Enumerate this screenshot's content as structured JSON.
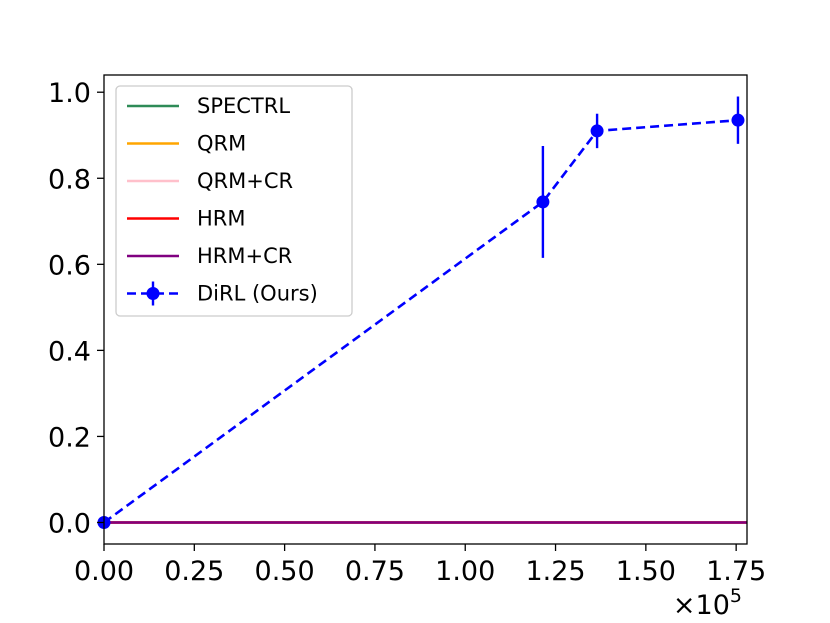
{
  "chart_data": {
    "type": "line",
    "title": "",
    "xlabel": "",
    "ylabel": "",
    "x_offset_text": "×10",
    "x_offset_exponent": "5",
    "xlim": [
      0,
      1.78
    ],
    "ylim": [
      -0.05,
      1.04
    ],
    "x_ticks": [
      0.0,
      0.25,
      0.5,
      0.75,
      1.0,
      1.25,
      1.5,
      1.75
    ],
    "x_tick_labels": [
      "0.00",
      "0.25",
      "0.50",
      "0.75",
      "1.00",
      "1.25",
      "1.50",
      "1.75"
    ],
    "y_ticks": [
      0.0,
      0.2,
      0.4,
      0.6,
      0.8,
      1.0
    ],
    "y_tick_labels": [
      "0.0",
      "0.2",
      "0.4",
      "0.6",
      "0.8",
      "1.0"
    ],
    "grid": false,
    "legend_position": "upper-left",
    "series": [
      {
        "name": "SPECTRL",
        "color": "#2e8b57",
        "style": "solid",
        "x": [
          0,
          1.78
        ],
        "y": [
          0,
          0
        ]
      },
      {
        "name": "QRM",
        "color": "#ffa500",
        "style": "solid",
        "x": [
          0,
          1.78
        ],
        "y": [
          0,
          0
        ]
      },
      {
        "name": "QRM+CR",
        "color": "#ffc0cb",
        "style": "solid",
        "x": [
          0,
          1.78
        ],
        "y": [
          0,
          0
        ]
      },
      {
        "name": "HRM",
        "color": "#ff0000",
        "style": "solid",
        "x": [
          0,
          1.78
        ],
        "y": [
          0,
          0
        ]
      },
      {
        "name": "HRM+CR",
        "color": "#800080",
        "style": "solid",
        "x": [
          0,
          1.78
        ],
        "y": [
          0,
          0
        ]
      },
      {
        "name": "DiRL (Ours)",
        "color": "#0000ff",
        "style": "dashed",
        "markers": true,
        "x": [
          0.0,
          1.215,
          1.365,
          1.755
        ],
        "y": [
          0.0,
          0.745,
          0.91,
          0.935
        ],
        "yerr": [
          0.0,
          0.13,
          0.04,
          0.055
        ]
      }
    ]
  }
}
